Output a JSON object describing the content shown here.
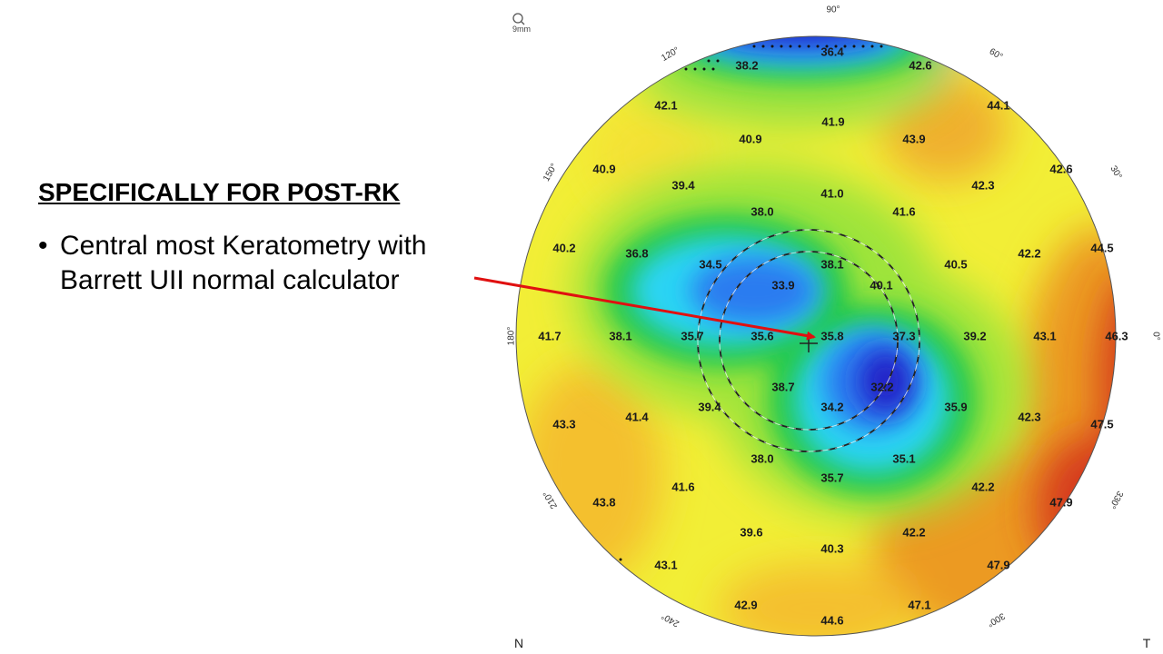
{
  "slide": {
    "heading": "SPECIFICALLY FOR POST-RK",
    "bullet": "Central most Keratometry with Barrett UII normal calculator"
  },
  "map": {
    "scale_label": "9mm",
    "corner_left": "N",
    "corner_right": "T",
    "degree_labels": [
      "90°",
      "60°",
      "30°",
      "0°",
      "330°",
      "300°",
      "240°",
      "210°",
      "180°",
      "150°",
      "120°"
    ],
    "colors": {
      "dark_blue": "#2020c8",
      "blue": "#2a7cf0",
      "cyan": "#2ad4f4",
      "green": "#22c84a",
      "light_green": "#9ee43a",
      "yellow": "#f4f034",
      "orange": "#ec9a22",
      "red": "#d63a1c",
      "arrow": "#e01010"
    },
    "values": [
      "36.4",
      "38.2",
      "42.6",
      "42.1",
      "44.1",
      "41.9",
      "40.9",
      "43.9",
      "40.9",
      "42.6",
      "39.4",
      "41.0",
      "42.3",
      "38.0",
      "41.6",
      "40.2",
      "36.8",
      "34.5",
      "38.1",
      "40.5",
      "42.2",
      "44.5",
      "33.9",
      "40.1",
      "41.7",
      "38.1",
      "35.7",
      "35.6",
      "35.8",
      "37.3",
      "39.2",
      "43.1",
      "46.3",
      "38.7",
      "32.2",
      "39.4",
      "34.2",
      "35.9",
      "42.3",
      "47.5",
      "43.3",
      "41.4",
      "38.0",
      "35.1",
      "35.7",
      "41.6",
      "42.2",
      "47.9",
      "43.8",
      "39.6",
      "42.2",
      "40.3",
      "43.1",
      "47.9",
      "42.9",
      "47.1",
      "44.6"
    ]
  }
}
